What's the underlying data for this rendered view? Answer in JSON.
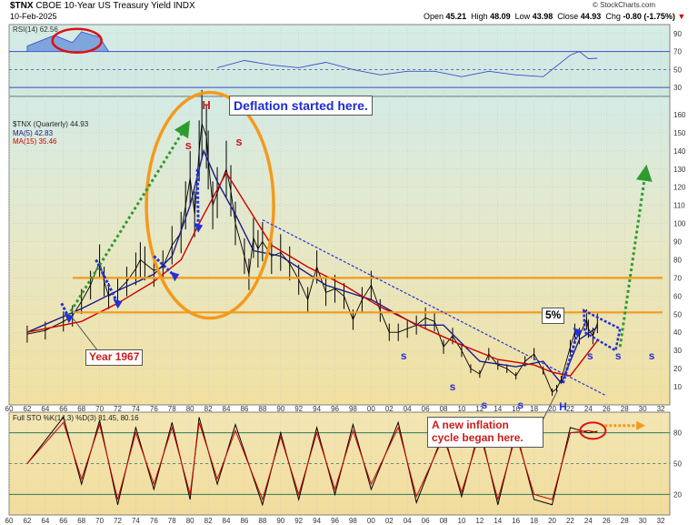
{
  "header": {
    "symbol": "$TNX",
    "name": "CBOE 10-Year US Treasury Yield",
    "exchange": "INDX",
    "date": "10-Feb-2025",
    "open_label": "Open",
    "open": "45.21",
    "high_label": "High",
    "high": "48.09",
    "low_label": "Low",
    "low": "43.98",
    "close_label": "Close",
    "close": "44.93",
    "chg_label": "Chg",
    "chg": "-0.80 (-1.75%)",
    "chg_arrow": "▼",
    "credit": "© StockCharts.com"
  },
  "colors": {
    "price": "#000000",
    "ma5": "#1a1a8c",
    "ma15": "#cc0000",
    "rsi": "#3a4ec8",
    "stoch_k": "#000000",
    "stoch_d": "#cc0000",
    "orange": "#f39a1c",
    "blue_arrow": "#2431d8",
    "green_arrow": "#2e9b2e",
    "panel_top": "#d6ece6",
    "panel_bottom": "#f0e2a6"
  },
  "chart_data": [
    {
      "type": "line",
      "title": "RSI(14) 62.56",
      "y_ticks": [
        30,
        50,
        70,
        90
      ],
      "ylim": [
        20,
        100
      ],
      "reference_lines": [
        70,
        50,
        30
      ],
      "series": [
        {
          "name": "RSI(14)",
          "x": [
            1983,
            1986,
            1989,
            1992,
            1995,
            1998,
            2001,
            2004,
            2007,
            2010,
            2013,
            2016,
            2019,
            2022,
            2023,
            2024,
            2025
          ],
          "values": [
            52,
            60,
            55,
            52,
            58,
            50,
            44,
            48,
            48,
            42,
            48,
            44,
            42,
            66,
            70,
            62,
            62.56
          ]
        }
      ]
    },
    {
      "type": "line",
      "title": "$TNX (Quarterly) 44.93",
      "ylabel": "",
      "xlim": [
        1960,
        2033
      ],
      "ylim": [
        0,
        170
      ],
      "x_ticks": [
        60,
        62,
        64,
        66,
        68,
        70,
        72,
        74,
        76,
        78,
        80,
        82,
        84,
        86,
        88,
        90,
        92,
        94,
        96,
        98,
        "00",
        "02",
        "04",
        "06",
        "08",
        10,
        12,
        14,
        16,
        18,
        20,
        22,
        24,
        26,
        28,
        30,
        32
      ],
      "y_ticks": [
        10,
        20,
        30,
        40,
        50,
        60,
        70,
        80,
        90,
        100,
        110,
        120,
        130,
        140,
        150,
        160
      ],
      "horizontal_lines": [
        70,
        51
      ],
      "series": [
        {
          "name": "$TNX",
          "x": [
            1962,
            1964,
            1966,
            1967,
            1968,
            1969,
            1970,
            1970.5,
            1971,
            1972,
            1973,
            1974,
            1974.5,
            1975,
            1976,
            1977,
            1978,
            1979,
            1979.5,
            1980,
            1980.5,
            1981,
            1981.3,
            1981.8,
            1982,
            1982.5,
            1983,
            1984,
            1984.5,
            1985,
            1986,
            1986.5,
            1987,
            1987.5,
            1988,
            1989,
            1990,
            1991,
            1992,
            1993,
            1994,
            1995,
            1996,
            1997,
            1998,
            1999,
            2000,
            2001,
            2002,
            2003,
            2004,
            2005,
            2006,
            2007,
            2008,
            2009,
            2010,
            2011,
            2012,
            2013,
            2014,
            2015,
            2016,
            2017,
            2018,
            2019,
            2020,
            2020.5,
            2021,
            2022,
            2022.5,
            2023,
            2023.8,
            2024,
            2024.5,
            2025
          ],
          "values": [
            39,
            41,
            46,
            49,
            57,
            66,
            79,
            68,
            60,
            63,
            68,
            75,
            80,
            78,
            74,
            76,
            88,
            95,
            110,
            125,
            105,
            140,
            155,
            148,
            135,
            110,
            117,
            130,
            118,
            100,
            82,
            72,
            92,
            86,
            90,
            82,
            84,
            78,
            69,
            58,
            76,
            62,
            64,
            60,
            47,
            58,
            66,
            52,
            40,
            40,
            42,
            44,
            48,
            46,
            32,
            38,
            30,
            20,
            17,
            28,
            22,
            20,
            16,
            24,
            28,
            19,
            7,
            9,
            14,
            32,
            40,
            38,
            47,
            42,
            38,
            44.93
          ]
        },
        {
          "name": "MA(5) 42.83",
          "x": [
            1962,
            1968,
            1972,
            1976,
            1978,
            1980,
            1981.5,
            1983,
            1985,
            1987,
            1990,
            1995,
            2000,
            2005,
            2008,
            2012,
            2016,
            2019,
            2021,
            2023,
            2025
          ],
          "values": [
            40,
            53,
            63,
            72,
            82,
            110,
            140,
            123,
            105,
            85,
            82,
            66,
            58,
            44,
            44,
            24,
            21,
            24,
            12,
            36,
            42.83
          ]
        },
        {
          "name": "MA(15) 35.46",
          "x": [
            1962,
            1968,
            1972,
            1976,
            1979,
            1981,
            1984,
            1986,
            1989,
            1993,
            1997,
            2001,
            2006,
            2010,
            2014,
            2018,
            2020,
            2022,
            2025
          ],
          "values": [
            40,
            46,
            56,
            68,
            80,
            100,
            128,
            112,
            88,
            76,
            66,
            54,
            42,
            33,
            25,
            22,
            18,
            16,
            35.46
          ]
        }
      ],
      "annotations": [
        "Deflation started here.",
        "Year 1967",
        "5%",
        "A new inflation cycle began here.",
        "H",
        "s",
        "s",
        "s",
        "s",
        "s",
        "s",
        "s",
        "s",
        "s",
        "H"
      ]
    },
    {
      "type": "line",
      "title": "Full STO %K(14,3) %D(3) 81.45, 80.16",
      "y_ticks": [
        20,
        50,
        80
      ],
      "ylim": [
        0,
        100
      ],
      "reference_lines": [
        80,
        50,
        20
      ],
      "series": [
        {
          "name": "%K(14,3)",
          "x": [
            1962,
            1966,
            1968,
            1970,
            1972,
            1974,
            1976,
            1978,
            1980,
            1981,
            1983,
            1985,
            1988,
            1990,
            1992,
            1994,
            1996,
            1998,
            2000,
            2003,
            2005,
            2008,
            2010,
            2012,
            2014,
            2016,
            2018,
            2020,
            2022,
            2024,
            2025
          ],
          "values": [
            50,
            95,
            30,
            92,
            10,
            85,
            25,
            90,
            15,
            95,
            30,
            88,
            10,
            80,
            15,
            85,
            20,
            88,
            25,
            90,
            12,
            80,
            18,
            85,
            10,
            82,
            15,
            10,
            85,
            80,
            81.45
          ]
        },
        {
          "name": "%D(3)",
          "x": [
            1962,
            1966,
            1968,
            1970,
            1972,
            1974,
            1976,
            1978,
            1980,
            1981,
            1983,
            1985,
            1988,
            1990,
            1992,
            1994,
            1996,
            1998,
            2000,
            2003,
            2005,
            2008,
            2010,
            2012,
            2014,
            2016,
            2018,
            2020,
            2022,
            2024,
            2025
          ],
          "values": [
            50,
            90,
            35,
            88,
            15,
            80,
            30,
            85,
            20,
            90,
            35,
            82,
            15,
            76,
            20,
            80,
            25,
            82,
            30,
            85,
            18,
            76,
            22,
            80,
            15,
            78,
            20,
            15,
            80,
            82,
            80.16
          ]
        }
      ]
    }
  ]
}
